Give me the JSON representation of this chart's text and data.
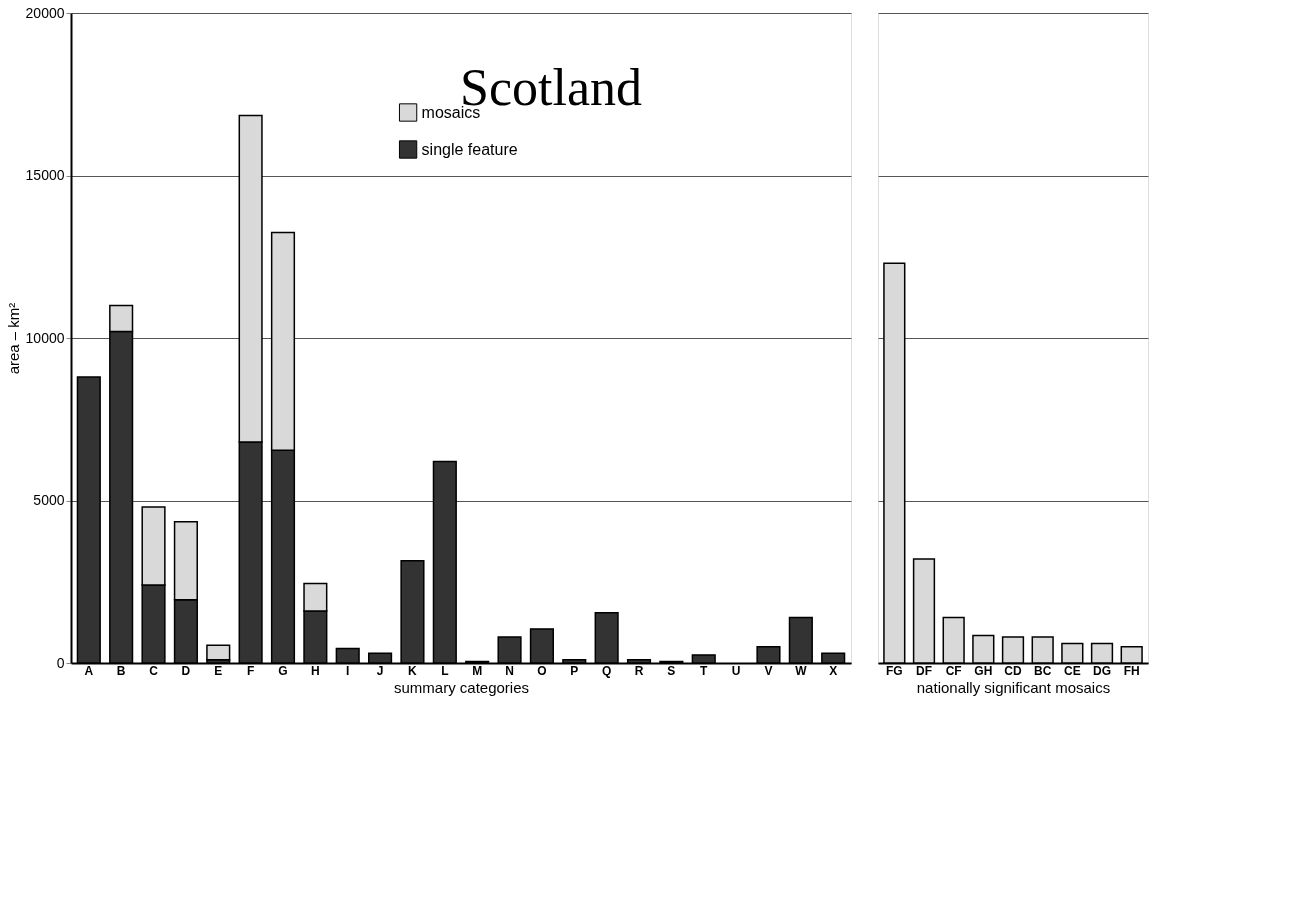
{
  "chart_data": [
    {
      "type": "bar",
      "title": "Scotland",
      "ylabel": "area – km²",
      "xlabel": "summary categories",
      "stacked": true,
      "categories": [
        "A",
        "B",
        "C",
        "D",
        "E",
        "F",
        "G",
        "H",
        "I",
        "J",
        "K",
        "L",
        "M",
        "N",
        "O",
        "P",
        "Q",
        "R",
        "S",
        "T",
        "U",
        "V",
        "W",
        "X"
      ],
      "series": [
        {
          "name": "single feature",
          "color": "#333333",
          "values": [
            8800,
            10200,
            2400,
            1950,
            100,
            6800,
            6550,
            1600,
            450,
            300,
            3150,
            6200,
            50,
            800,
            1050,
            100,
            1550,
            100,
            50,
            250,
            0,
            500,
            1400,
            300
          ]
        },
        {
          "name": "mosaics",
          "color": "#d9d9d9",
          "values": [
            0,
            800,
            2400,
            2400,
            450,
            10050,
            6700,
            850,
            0,
            0,
            0,
            0,
            0,
            0,
            0,
            0,
            0,
            0,
            0,
            0,
            0,
            0,
            0,
            0
          ]
        }
      ],
      "ylim": [
        0,
        20000
      ],
      "yticks": [
        0,
        5000,
        10000,
        15000,
        20000
      ],
      "grid": "y",
      "legend": "top"
    },
    {
      "type": "bar",
      "xlabel": "nationally significant mosaics",
      "categories": [
        "FG",
        "DF",
        "CF",
        "GH",
        "CD",
        "BC",
        "CE",
        "DG",
        "FH"
      ],
      "series": [
        {
          "color": "#d9d9d9",
          "values": [
            12300,
            3200,
            1400,
            850,
            800,
            800,
            600,
            600,
            500
          ]
        }
      ],
      "ylim": [
        0,
        20000
      ],
      "yticks": [
        0,
        5000,
        10000,
        15000,
        20000
      ],
      "grid": "y",
      "tick_labels": "x"
    }
  ]
}
